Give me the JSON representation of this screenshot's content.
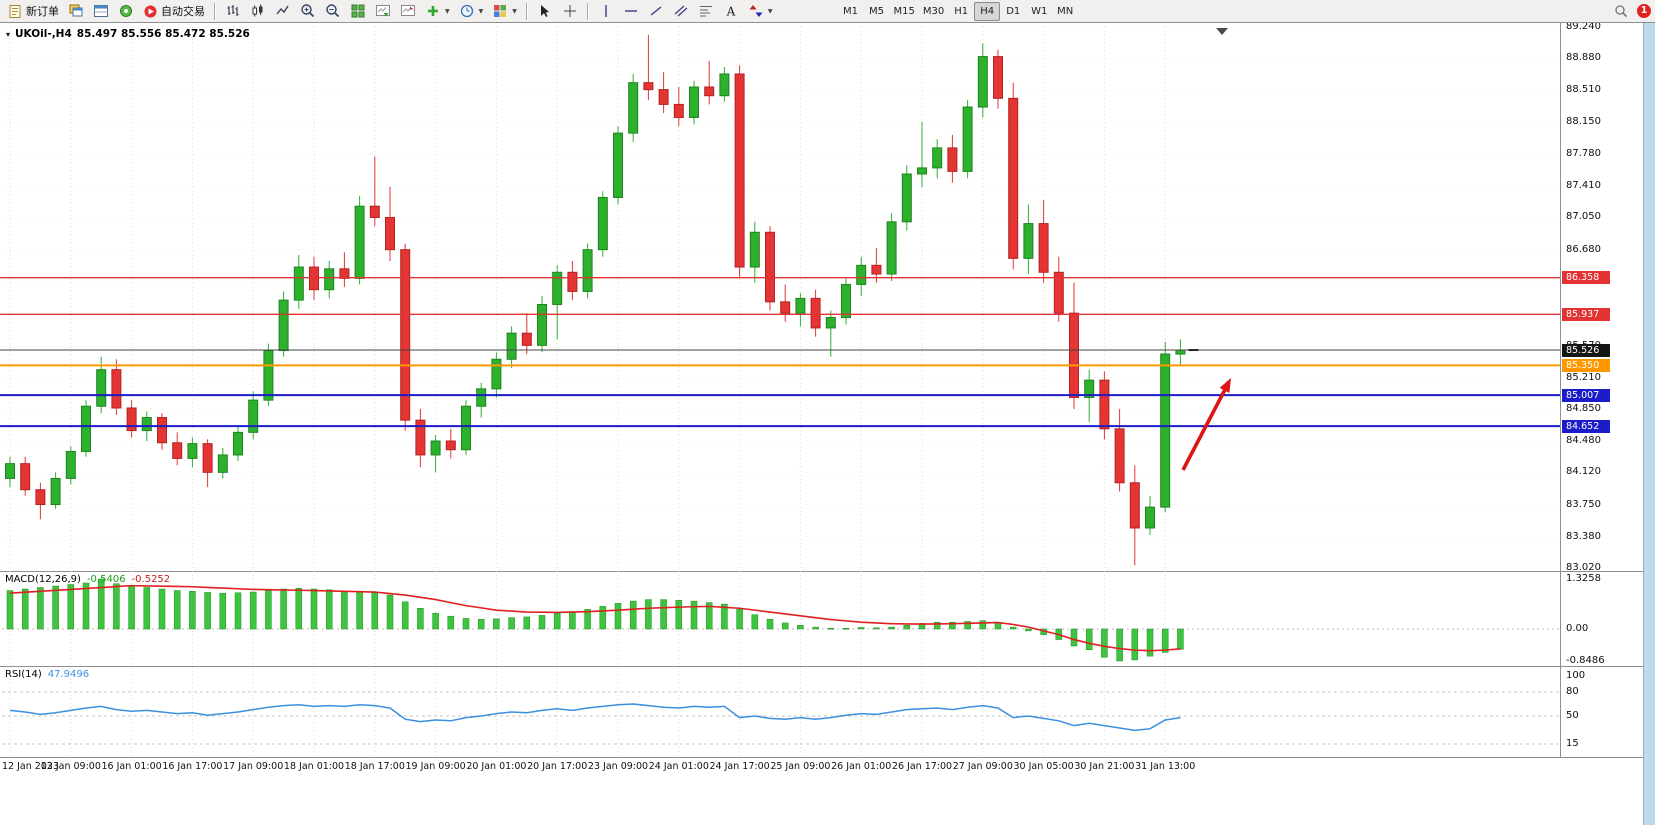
{
  "toolbar": {
    "new_order_label": "新订单",
    "auto_trading_label": "自动交易",
    "timeframes": [
      "M1",
      "M5",
      "M15",
      "M30",
      "H1",
      "H4",
      "D1",
      "W1",
      "MN"
    ],
    "active_timeframe": "H4",
    "notification_badge": "1",
    "icon_names": [
      "new-order",
      "charts-window",
      "market-watch",
      "navigator",
      "auto-trading",
      "ohlc-bars",
      "candlesticks",
      "line-chart",
      "zoom-in",
      "zoom-out",
      "tile-windows",
      "auto-scroll",
      "chart-shift",
      "add-indicator",
      "periods",
      "templates",
      "cursor",
      "crosshair",
      "vertical-line",
      "horizontal-line",
      "trendline",
      "channel",
      "fibonacci",
      "text-tool",
      "arrows-tool",
      "search",
      "notification"
    ]
  },
  "chart": {
    "title": "UKOil-,H4",
    "ohlc": "85.497 85.556 85.472 85.526",
    "price_axis": [
      {
        "label": "89.240",
        "value": 89.24
      },
      {
        "label": "88.880",
        "value": 88.88
      },
      {
        "label": "88.510",
        "value": 88.51
      },
      {
        "label": "88.150",
        "value": 88.15
      },
      {
        "label": "87.780",
        "value": 87.78
      },
      {
        "label": "87.410",
        "value": 87.41
      },
      {
        "label": "87.050",
        "value": 87.05
      },
      {
        "label": "86.680",
        "value": 86.68
      },
      {
        "label": "86.310",
        "value": 86.31
      },
      {
        "label": "85.940",
        "value": 85.94
      },
      {
        "label": "85.570",
        "value": 85.57
      },
      {
        "label": "85.210",
        "value": 85.21
      },
      {
        "label": "84.850",
        "value": 84.85
      },
      {
        "label": "84.480",
        "value": 84.48
      },
      {
        "label": "84.120",
        "value": 84.12
      },
      {
        "label": "83.750",
        "value": 83.75
      },
      {
        "label": "83.380",
        "value": 83.38
      },
      {
        "label": "83.020",
        "value": 83.02
      }
    ],
    "hlines": [
      {
        "price": "86.358",
        "value": 86.358,
        "color": "#e23232",
        "tag": "#e23232",
        "width": 1.4
      },
      {
        "price": "85.937",
        "value": 85.937,
        "color": "#e23232",
        "tag": "#e23232",
        "width": 1.4
      },
      {
        "price": "85.526",
        "value": 85.526,
        "color": "#454545",
        "tag": "#151515",
        "width": 1
      },
      {
        "price": "85.350",
        "value": 85.35,
        "color": "#ff9800",
        "tag": "#ff9800",
        "width": 2
      },
      {
        "price": "85.007",
        "value": 85.007,
        "color": "#1c1cc8",
        "tag": "#1c1cc8",
        "width": 2
      },
      {
        "price": "84.652",
        "value": 84.652,
        "color": "#1c1cc8",
        "tag": "#1c1cc8",
        "width": 2
      }
    ],
    "time_axis": [
      "12 Jan 2023",
      "13 Jan 09:00",
      "16 Jan 01:00",
      "16 Jan 17:00",
      "17 Jan 09:00",
      "18 Jan 01:00",
      "18 Jan 17:00",
      "19 Jan 09:00",
      "20 Jan 01:00",
      "20 Jan 17:00",
      "23 Jan 09:00",
      "24 Jan 01:00",
      "24 Jan 17:00",
      "25 Jan 09:00",
      "26 Jan 01:00",
      "26 Jan 17:00",
      "27 Jan 09:00",
      "30 Jan 05:00",
      "30 Jan 21:00",
      "31 Jan 13:00"
    ]
  },
  "chart_data": {
    "type": "candlestick",
    "symbol": "UKOil-",
    "timeframe": "H4",
    "y_range": [
      83.02,
      89.24
    ],
    "x_label_every": 4,
    "colors": {
      "up": "#2db12d",
      "up_border": "#1d8420",
      "down": "#e43434",
      "down_border": "#b42222",
      "macd_bar": "#3ec43e",
      "macd_signal": "#e02020",
      "rsi_line": "#3a8fe0",
      "arrow": "#dd1515"
    },
    "candles": [
      [
        84.05,
        84.3,
        83.95,
        84.22
      ],
      [
        84.22,
        84.3,
        83.85,
        83.92
      ],
      [
        83.92,
        84.0,
        83.58,
        83.75
      ],
      [
        83.75,
        84.12,
        83.7,
        84.05
      ],
      [
        84.05,
        84.42,
        83.98,
        84.36
      ],
      [
        84.36,
        84.95,
        84.3,
        84.88
      ],
      [
        84.88,
        85.45,
        84.8,
        85.3
      ],
      [
        85.3,
        85.42,
        84.78,
        84.86
      ],
      [
        84.86,
        84.95,
        84.52,
        84.6
      ],
      [
        84.6,
        84.82,
        84.48,
        84.75
      ],
      [
        84.75,
        84.8,
        84.38,
        84.46
      ],
      [
        84.46,
        84.58,
        84.2,
        84.28
      ],
      [
        84.28,
        84.52,
        84.18,
        84.45
      ],
      [
        84.45,
        84.5,
        83.95,
        84.12
      ],
      [
        84.12,
        84.4,
        84.05,
        84.32
      ],
      [
        84.32,
        84.65,
        84.25,
        84.58
      ],
      [
        84.58,
        85.05,
        84.5,
        84.95
      ],
      [
        84.95,
        85.6,
        84.88,
        85.52
      ],
      [
        85.52,
        86.2,
        85.45,
        86.1
      ],
      [
        86.1,
        86.62,
        86.0,
        86.48
      ],
      [
        86.48,
        86.6,
        86.1,
        86.22
      ],
      [
        86.22,
        86.55,
        86.12,
        86.46
      ],
      [
        86.46,
        86.65,
        86.25,
        86.35
      ],
      [
        86.35,
        87.3,
        86.28,
        87.18
      ],
      [
        87.18,
        87.75,
        86.95,
        87.05
      ],
      [
        87.05,
        87.4,
        86.55,
        86.68
      ],
      [
        86.68,
        86.75,
        84.6,
        84.72
      ],
      [
        84.72,
        84.85,
        84.18,
        84.32
      ],
      [
        84.32,
        84.55,
        84.12,
        84.48
      ],
      [
        84.48,
        84.62,
        84.28,
        84.38
      ],
      [
        84.38,
        84.95,
        84.32,
        84.88
      ],
      [
        84.88,
        85.15,
        84.75,
        85.08
      ],
      [
        85.08,
        85.5,
        84.98,
        85.42
      ],
      [
        85.42,
        85.8,
        85.32,
        85.72
      ],
      [
        85.72,
        85.95,
        85.48,
        85.58
      ],
      [
        85.58,
        86.15,
        85.5,
        86.05
      ],
      [
        86.05,
        86.5,
        85.65,
        86.42
      ],
      [
        86.42,
        86.55,
        86.1,
        86.2
      ],
      [
        86.2,
        86.75,
        86.12,
        86.68
      ],
      [
        86.68,
        87.35,
        86.6,
        87.28
      ],
      [
        87.28,
        88.1,
        87.2,
        88.02
      ],
      [
        88.02,
        88.7,
        87.92,
        88.6
      ],
      [
        88.6,
        89.15,
        88.4,
        88.52
      ],
      [
        88.52,
        88.72,
        88.25,
        88.35
      ],
      [
        88.35,
        88.55,
        88.1,
        88.2
      ],
      [
        88.2,
        88.62,
        88.12,
        88.55
      ],
      [
        88.55,
        88.85,
        88.35,
        88.45
      ],
      [
        88.45,
        88.78,
        88.38,
        88.7
      ],
      [
        88.7,
        88.8,
        86.35,
        86.48
      ],
      [
        86.48,
        87.0,
        86.3,
        86.88
      ],
      [
        86.88,
        86.95,
        85.98,
        86.08
      ],
      [
        86.08,
        86.28,
        85.85,
        85.95
      ],
      [
        85.95,
        86.18,
        85.8,
        86.12
      ],
      [
        86.12,
        86.22,
        85.68,
        85.78
      ],
      [
        85.78,
        85.98,
        85.45,
        85.9
      ],
      [
        85.9,
        86.35,
        85.82,
        86.28
      ],
      [
        86.28,
        86.6,
        86.15,
        86.5
      ],
      [
        86.5,
        86.7,
        86.3,
        86.4
      ],
      [
        86.4,
        87.1,
        86.32,
        87.0
      ],
      [
        87.0,
        87.65,
        86.9,
        87.55
      ],
      [
        87.55,
        88.15,
        87.4,
        87.62
      ],
      [
        87.62,
        87.95,
        87.5,
        87.85
      ],
      [
        87.85,
        88.0,
        87.45,
        87.58
      ],
      [
        87.58,
        88.4,
        87.5,
        88.32
      ],
      [
        88.32,
        89.05,
        88.2,
        88.9
      ],
      [
        88.9,
        88.98,
        88.3,
        88.42
      ],
      [
        88.42,
        88.6,
        86.45,
        86.58
      ],
      [
        86.58,
        87.2,
        86.4,
        86.98
      ],
      [
        86.98,
        87.25,
        86.3,
        86.42
      ],
      [
        86.42,
        86.6,
        85.85,
        85.95
      ],
      [
        85.95,
        86.3,
        84.85,
        84.98
      ],
      [
        84.98,
        85.3,
        84.7,
        85.18
      ],
      [
        85.18,
        85.28,
        84.5,
        84.62
      ],
      [
        84.62,
        84.85,
        83.9,
        84.0
      ],
      [
        84.0,
        84.2,
        83.05,
        83.48
      ],
      [
        83.48,
        83.85,
        83.4,
        83.72
      ],
      [
        83.72,
        85.62,
        83.66,
        85.48
      ],
      [
        85.48,
        85.65,
        85.35,
        85.526
      ]
    ],
    "indicators": {
      "macd": {
        "title": "MACD(12,26,9)",
        "value_main": "-0.5406",
        "value_signal": "-0.5252",
        "axis": [
          {
            "label": "1.3258",
            "value": 1.3258
          },
          {
            "label": "0.00",
            "value": 0
          },
          {
            "label": "-0.8486",
            "value": -0.8486
          }
        ],
        "histogram": [
          1.02,
          1.06,
          1.1,
          1.14,
          1.18,
          1.22,
          1.3258,
          1.2,
          1.14,
          1.1,
          1.06,
          1.02,
          1.0,
          0.97,
          0.95,
          0.96,
          0.98,
          1.02,
          1.06,
          1.08,
          1.06,
          1.04,
          1.0,
          0.98,
          0.96,
          0.9,
          0.72,
          0.55,
          0.42,
          0.34,
          0.28,
          0.26,
          0.27,
          0.3,
          0.32,
          0.36,
          0.42,
          0.46,
          0.52,
          0.6,
          0.68,
          0.74,
          0.78,
          0.78,
          0.76,
          0.74,
          0.7,
          0.66,
          0.52,
          0.38,
          0.26,
          0.16,
          0.1,
          0.05,
          0.02,
          0.02,
          0.04,
          0.03,
          0.05,
          0.1,
          0.15,
          0.18,
          0.18,
          0.2,
          0.22,
          0.18,
          0.05,
          -0.05,
          -0.15,
          -0.28,
          -0.45,
          -0.55,
          -0.75,
          -0.8486,
          -0.82,
          -0.72,
          -0.62,
          -0.5406
        ],
        "signal": [
          0.95,
          0.975,
          1.0,
          1.025,
          1.05,
          1.075,
          1.1,
          1.125,
          1.15,
          1.1425,
          1.135,
          1.1275,
          1.12,
          1.1025,
          1.085,
          1.0675,
          1.05,
          1.0425,
          1.035,
          1.0275,
          1.02,
          1.01,
          1.0,
          0.99,
          0.98,
          0.94,
          0.9,
          0.84,
          0.78,
          0.7,
          0.62,
          0.56,
          0.5,
          0.475,
          0.45,
          0.445,
          0.44,
          0.45,
          0.46,
          0.48,
          0.5,
          0.525,
          0.55,
          0.565,
          0.58,
          0.59,
          0.6,
          0.575,
          0.55,
          0.5,
          0.45,
          0.4,
          0.35,
          0.3,
          0.25,
          0.215,
          0.18,
          0.16,
          0.14,
          0.135,
          0.13,
          0.135,
          0.14,
          0.15,
          0.16,
          0.17,
          0.12,
          0.05,
          -0.05,
          -0.15,
          -0.28,
          -0.38,
          -0.46,
          -0.52,
          -0.56,
          -0.575,
          -0.56,
          -0.5252
        ]
      },
      "rsi": {
        "title": "RSI(14)",
        "value": "47.9496",
        "axis": [
          {
            "label": "100",
            "value": 100
          },
          {
            "label": "80",
            "value": 80
          },
          {
            "label": "50",
            "value": 50
          },
          {
            "label": "15",
            "value": 15
          }
        ],
        "levels": [
          80,
          50,
          15
        ],
        "values": [
          57,
          55,
          52,
          54,
          57,
          60,
          62,
          58,
          56,
          57,
          55,
          53,
          54,
          51,
          53,
          55,
          58,
          61,
          63,
          64,
          62,
          63,
          62,
          64,
          63,
          60,
          46,
          43,
          45,
          44,
          48,
          50,
          53,
          55,
          54,
          57,
          59,
          57,
          60,
          62,
          64,
          65,
          63,
          61,
          60,
          62,
          61,
          62,
          48,
          50,
          47,
          46,
          48,
          46,
          48,
          51,
          53,
          52,
          55,
          58,
          59,
          60,
          58,
          61,
          63,
          60,
          48,
          50,
          47,
          44,
          38,
          41,
          38,
          35,
          32,
          34,
          45,
          47.9496
        ]
      }
    },
    "annotation_arrow": {
      "from": [
        1183,
        470
      ],
      "to": [
        1231,
        378
      ]
    }
  }
}
